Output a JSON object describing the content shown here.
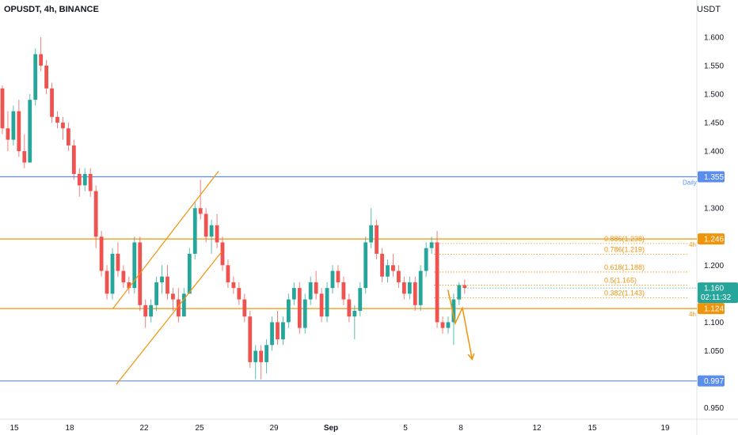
{
  "header": {
    "symbol": "OPUSDT, 4h, BINANCE",
    "currency": "USDT"
  },
  "chart_data": {
    "type": "candlestick",
    "ylim": [
      0.93,
      1.665
    ],
    "y_ticks": [
      "1.600",
      "1.550",
      "1.500",
      "1.450",
      "1.400",
      "1.300",
      "1.200",
      "1.100",
      "1.050",
      "0.950"
    ],
    "y_tick_values": [
      1.6,
      1.55,
      1.5,
      1.45,
      1.4,
      1.3,
      1.2,
      1.1,
      1.05,
      0.95
    ],
    "x_ticks": [
      "15",
      "18",
      "22",
      "25",
      "29",
      "Sep",
      "5",
      "8",
      "12",
      "15",
      "19"
    ],
    "colors": {
      "up": "#26a69a",
      "down": "#ef5350",
      "wick_up": "#26a69a",
      "wick_down": "#ef5350",
      "orange": "#f0940a",
      "blue": "#5b8def",
      "price_tag": "#26a69a"
    },
    "horizontal_levels": [
      {
        "value": 1.355,
        "label": "1.355",
        "note": "Daily",
        "color": "#5b8def"
      },
      {
        "value": 1.246,
        "label": "1.246",
        "note": "4h",
        "color": "#f0940a"
      },
      {
        "value": 1.124,
        "label": "1.124",
        "note": "4h",
        "color": "#f0940a"
      },
      {
        "value": 0.997,
        "label": "0.997",
        "note": "",
        "color": "#5b8def"
      }
    ],
    "fib_levels": [
      {
        "value": 1.238,
        "label": "0.886(1.238)"
      },
      {
        "value": 1.219,
        "label": "0.786(1.219)"
      },
      {
        "value": 1.188,
        "label": "0.618(1.188)"
      },
      {
        "value": 1.165,
        "label": "0.5(1.165)"
      },
      {
        "value": 1.143,
        "label": "0.382(1.143)"
      }
    ],
    "last_price": {
      "value": 1.16,
      "label": "1.160",
      "countdown": "02:11:32"
    },
    "channel": {
      "upper": [
        {
          "x": 20.0,
          "y": 1.123
        },
        {
          "x": 39.3,
          "y": 1.365
        }
      ],
      "lower": [
        {
          "x": 20.7,
          "y": 0.991
        },
        {
          "x": 39.8,
          "y": 1.223
        }
      ]
    },
    "projection": [
      {
        "x": 36.8,
        "y": 1.157
      },
      {
        "x": 37.4,
        "y": 1.098
      },
      {
        "x": 38.0,
        "y": 1.125
      },
      {
        "x": 38.8,
        "y": 1.035
      }
    ],
    "candles": [
      [
        1.51,
        1.515,
        1.43,
        1.44
      ],
      [
        1.44,
        1.47,
        1.4,
        1.42
      ],
      [
        1.42,
        1.48,
        1.41,
        1.47
      ],
      [
        1.47,
        1.49,
        1.39,
        1.4
      ],
      [
        1.4,
        1.43,
        1.37,
        1.38
      ],
      [
        1.38,
        1.5,
        1.38,
        1.49
      ],
      [
        1.49,
        1.58,
        1.48,
        1.57
      ],
      [
        1.57,
        1.6,
        1.54,
        1.55
      ],
      [
        1.55,
        1.56,
        1.5,
        1.51
      ],
      [
        1.51,
        1.52,
        1.45,
        1.46
      ],
      [
        1.46,
        1.47,
        1.44,
        1.45
      ],
      [
        1.45,
        1.46,
        1.42,
        1.44
      ],
      [
        1.44,
        1.45,
        1.4,
        1.41
      ],
      [
        1.41,
        1.42,
        1.35,
        1.36
      ],
      [
        1.36,
        1.37,
        1.32,
        1.34
      ],
      [
        1.34,
        1.37,
        1.33,
        1.36
      ],
      [
        1.36,
        1.37,
        1.32,
        1.33
      ],
      [
        1.33,
        1.34,
        1.23,
        1.25
      ],
      [
        1.25,
        1.26,
        1.18,
        1.19
      ],
      [
        1.19,
        1.2,
        1.14,
        1.15
      ],
      [
        1.15,
        1.23,
        1.14,
        1.22
      ],
      [
        1.22,
        1.24,
        1.18,
        1.19
      ],
      [
        1.19,
        1.2,
        1.16,
        1.17
      ],
      [
        1.17,
        1.18,
        1.15,
        1.16
      ],
      [
        1.16,
        1.25,
        1.15,
        1.24
      ],
      [
        1.24,
        1.25,
        1.12,
        1.13
      ],
      [
        1.13,
        1.14,
        1.09,
        1.11
      ],
      [
        1.11,
        1.14,
        1.1,
        1.13
      ],
      [
        1.13,
        1.18,
        1.12,
        1.17
      ],
      [
        1.17,
        1.2,
        1.15,
        1.18
      ],
      [
        1.18,
        1.2,
        1.14,
        1.15
      ],
      [
        1.15,
        1.16,
        1.12,
        1.14
      ],
      [
        1.14,
        1.16,
        1.1,
        1.11
      ],
      [
        1.11,
        1.16,
        1.11,
        1.15
      ],
      [
        1.15,
        1.23,
        1.15,
        1.22
      ],
      [
        1.22,
        1.31,
        1.21,
        1.3
      ],
      [
        1.3,
        1.35,
        1.28,
        1.29
      ],
      [
        1.29,
        1.3,
        1.24,
        1.25
      ],
      [
        1.25,
        1.28,
        1.22,
        1.27
      ],
      [
        1.27,
        1.29,
        1.23,
        1.24
      ],
      [
        1.24,
        1.25,
        1.19,
        1.2
      ],
      [
        1.2,
        1.21,
        1.16,
        1.17
      ],
      [
        1.17,
        1.18,
        1.15,
        1.16
      ],
      [
        1.16,
        1.17,
        1.13,
        1.14
      ],
      [
        1.14,
        1.15,
        1.1,
        1.11
      ],
      [
        1.11,
        1.12,
        1.02,
        1.03
      ],
      [
        1.03,
        1.06,
        1.0,
        1.05
      ],
      [
        1.05,
        1.06,
        1.0,
        1.03
      ],
      [
        1.03,
        1.07,
        1.01,
        1.06
      ],
      [
        1.06,
        1.11,
        1.05,
        1.1
      ],
      [
        1.1,
        1.12,
        1.06,
        1.07
      ],
      [
        1.07,
        1.11,
        1.06,
        1.1
      ],
      [
        1.1,
        1.15,
        1.09,
        1.14
      ],
      [
        1.14,
        1.17,
        1.13,
        1.16
      ],
      [
        1.16,
        1.17,
        1.08,
        1.09
      ],
      [
        1.09,
        1.15,
        1.08,
        1.14
      ],
      [
        1.14,
        1.18,
        1.13,
        1.17
      ],
      [
        1.17,
        1.19,
        1.14,
        1.15
      ],
      [
        1.15,
        1.16,
        1.1,
        1.11
      ],
      [
        1.11,
        1.17,
        1.1,
        1.16
      ],
      [
        1.16,
        1.2,
        1.15,
        1.19
      ],
      [
        1.19,
        1.2,
        1.16,
        1.17
      ],
      [
        1.17,
        1.18,
        1.13,
        1.14
      ],
      [
        1.14,
        1.15,
        1.1,
        1.11
      ],
      [
        1.11,
        1.13,
        1.07,
        1.12
      ],
      [
        1.12,
        1.17,
        1.11,
        1.16
      ],
      [
        1.16,
        1.25,
        1.15,
        1.24
      ],
      [
        1.24,
        1.3,
        1.23,
        1.27
      ],
      [
        1.27,
        1.28,
        1.21,
        1.22
      ],
      [
        1.22,
        1.23,
        1.17,
        1.18
      ],
      [
        1.18,
        1.21,
        1.17,
        1.2
      ],
      [
        1.2,
        1.22,
        1.18,
        1.19
      ],
      [
        1.19,
        1.2,
        1.16,
        1.17
      ],
      [
        1.17,
        1.18,
        1.14,
        1.15
      ],
      [
        1.15,
        1.18,
        1.14,
        1.17
      ],
      [
        1.17,
        1.18,
        1.12,
        1.13
      ],
      [
        1.13,
        1.2,
        1.12,
        1.19
      ],
      [
        1.19,
        1.24,
        1.18,
        1.23
      ],
      [
        1.23,
        1.25,
        1.22,
        1.24
      ],
      [
        1.24,
        1.26,
        1.09,
        1.1
      ],
      [
        1.1,
        1.11,
        1.08,
        1.09
      ],
      [
        1.09,
        1.11,
        1.08,
        1.1
      ],
      [
        1.1,
        1.15,
        1.06,
        1.14
      ],
      [
        1.14,
        1.17,
        1.13,
        1.165
      ],
      [
        1.165,
        1.175,
        1.15,
        1.16
      ]
    ]
  }
}
